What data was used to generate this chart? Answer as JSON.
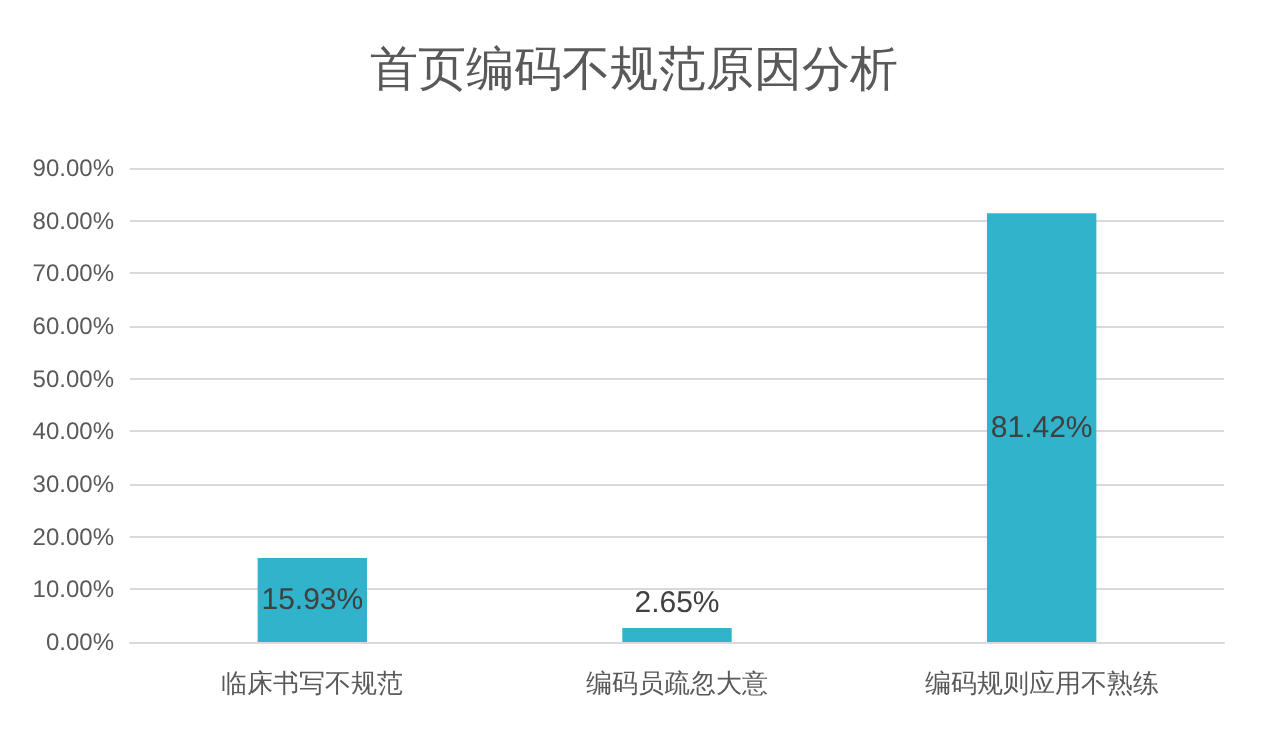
{
  "chart_data": {
    "type": "bar",
    "title": "首页编码不规范原因分析",
    "categories": [
      "临床书写不规范",
      "编码员疏忽大意",
      "编码规则应用不熟练"
    ],
    "values": [
      15.93,
      2.65,
      81.42
    ],
    "value_labels": [
      "15.93%",
      "2.65%",
      "81.42%"
    ],
    "color": "#31b3cc",
    "ylim": [
      0,
      90
    ],
    "yticks": [
      {
        "value": 0,
        "label": "0.00%"
      },
      {
        "value": 10,
        "label": "10.00%"
      },
      {
        "value": 20,
        "label": "20.00%"
      },
      {
        "value": 30,
        "label": "30.00%"
      },
      {
        "value": 40,
        "label": "40.00%"
      },
      {
        "value": 50,
        "label": "50.00%"
      },
      {
        "value": 60,
        "label": "60.00%"
      },
      {
        "value": 70,
        "label": "70.00%"
      },
      {
        "value": 80,
        "label": "80.00%"
      },
      {
        "value": 90,
        "label": "90.00%"
      }
    ],
    "grid": "y"
  }
}
